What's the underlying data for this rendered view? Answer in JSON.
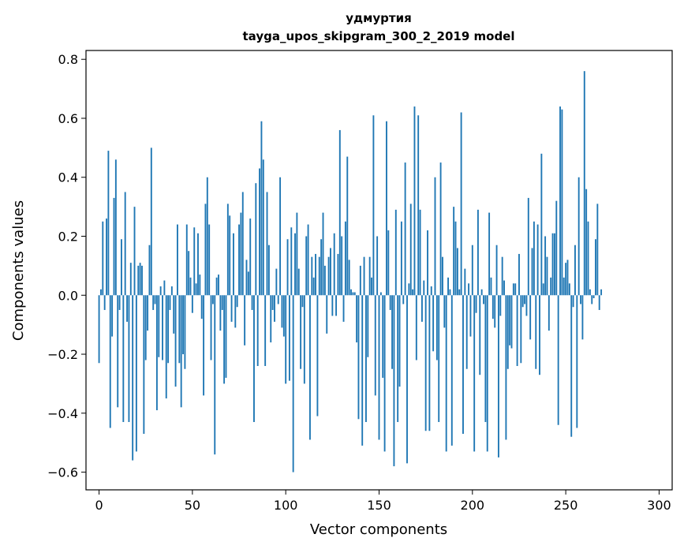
{
  "chart_data": {
    "type": "bar",
    "title_line1": "удмуртия",
    "title_line2": "tayga_upos_skipgram_300_2_2019 model",
    "xlabel": "Vector components",
    "ylabel": "Components values",
    "xlim": [
      -7,
      307
    ],
    "ylim": [
      -0.66,
      0.83
    ],
    "x_ticks": [
      0,
      50,
      100,
      150,
      200,
      250,
      300
    ],
    "x_tick_labels": [
      "0",
      "50",
      "100",
      "150",
      "200",
      "250",
      "300"
    ],
    "y_ticks": [
      -0.6,
      -0.4,
      -0.2,
      0.0,
      0.2,
      0.4,
      0.6,
      0.8
    ],
    "y_tick_labels": [
      "−0.6",
      "−0.4",
      "−0.2",
      "0.0",
      "0.2",
      "0.4",
      "0.6",
      "0.8"
    ],
    "bar_color": "#1f77b4",
    "values": [
      -0.23,
      0.02,
      0.25,
      -0.05,
      0.26,
      0.49,
      -0.45,
      -0.14,
      0.33,
      0.46,
      -0.38,
      -0.05,
      0.19,
      -0.43,
      0.35,
      -0.09,
      -0.43,
      0.11,
      -0.56,
      0.3,
      -0.53,
      0.1,
      0.11,
      0.1,
      -0.47,
      -0.22,
      -0.12,
      0.17,
      0.5,
      -0.05,
      -0.03,
      -0.39,
      -0.21,
      0.03,
      -0.22,
      0.05,
      -0.35,
      -0.23,
      -0.05,
      0.03,
      -0.13,
      -0.31,
      0.24,
      -0.23,
      -0.38,
      -0.2,
      -0.25,
      0.24,
      0.15,
      0.06,
      -0.06,
      0.23,
      0.04,
      0.21,
      0.07,
      -0.08,
      -0.34,
      0.31,
      0.4,
      0.24,
      -0.22,
      -0.03,
      -0.54,
      0.06,
      0.07,
      -0.12,
      -0.05,
      -0.3,
      -0.28,
      0.31,
      0.27,
      -0.09,
      0.21,
      -0.11,
      -0.04,
      0.24,
      0.28,
      0.35,
      -0.17,
      0.12,
      0.08,
      0.26,
      -0.05,
      -0.43,
      0.38,
      -0.24,
      0.43,
      0.59,
      0.46,
      -0.24,
      0.35,
      0.17,
      -0.16,
      -0.05,
      -0.09,
      0.09,
      -0.03,
      0.4,
      -0.11,
      -0.14,
      -0.3,
      0.19,
      -0.29,
      0.23,
      -0.6,
      0.21,
      0.28,
      0.09,
      -0.25,
      -0.04,
      -0.3,
      0.2,
      0.24,
      -0.49,
      0.13,
      0.06,
      0.14,
      -0.41,
      0.13,
      0.19,
      0.28,
      0.1,
      -0.13,
      0.13,
      0.16,
      -0.07,
      0.21,
      -0.07,
      0.14,
      0.56,
      0.2,
      -0.09,
      0.25,
      0.47,
      0.12,
      0.02,
      0.01,
      0.01,
      -0.16,
      -0.42,
      0.1,
      -0.51,
      0.13,
      -0.43,
      -0.21,
      0.13,
      0.06,
      0.61,
      -0.34,
      0.2,
      -0.49,
      0.01,
      -0.28,
      -0.53,
      0.59,
      0.22,
      -0.05,
      -0.25,
      -0.58,
      0.29,
      -0.43,
      -0.31,
      0.25,
      -0.03,
      0.45,
      -0.57,
      0.04,
      0.31,
      0.02,
      0.64,
      -0.22,
      0.61,
      0.29,
      -0.09,
      0.05,
      -0.46,
      0.22,
      -0.46,
      0.03,
      -0.19,
      0.4,
      -0.22,
      -0.43,
      0.45,
      0.13,
      -0.11,
      -0.53,
      0.06,
      0.02,
      -0.51,
      0.3,
      0.25,
      0.16,
      0.02,
      0.62,
      -0.47,
      0.09,
      -0.25,
      0.04,
      -0.14,
      0.17,
      -0.53,
      -0.06,
      0.29,
      -0.27,
      0.02,
      -0.03,
      -0.43,
      -0.53,
      0.28,
      0.06,
      -0.08,
      -0.11,
      0.17,
      -0.55,
      -0.07,
      0.13,
      0.05,
      -0.49,
      -0.25,
      -0.17,
      -0.18,
      0.04,
      0.04,
      -0.24,
      0.14,
      -0.23,
      -0.04,
      -0.03,
      -0.07,
      0.33,
      -0.15,
      0.16,
      0.25,
      -0.25,
      0.24,
      -0.27,
      0.48,
      0.04,
      0.2,
      0.13,
      -0.12,
      0.06,
      0.21,
      0.21,
      0.32,
      -0.44,
      0.64,
      0.63,
      0.06,
      0.11,
      0.12,
      0.04,
      -0.48,
      -0.04,
      0.17,
      -0.45,
      0.4,
      -0.03,
      -0.15,
      0.76,
      0.36,
      0.25,
      0.02,
      -0.03,
      -0.01,
      0.19,
      0.31,
      -0.05,
      0.02
    ]
  }
}
